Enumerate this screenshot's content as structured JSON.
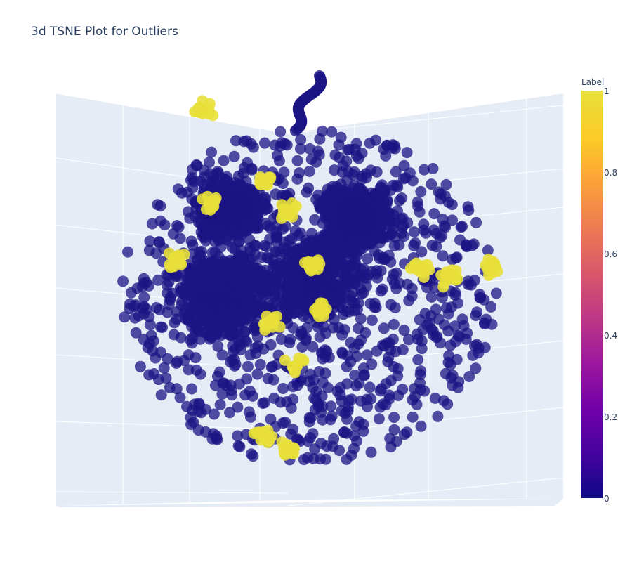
{
  "chart_data": {
    "type": "scatter",
    "title": "3d TSNE Plot for Outliers",
    "dimensions": 3,
    "color_field": "Label",
    "colorscale": "plasma",
    "colorscale_stops": [
      "#0d0887",
      "#46039f",
      "#7201a8",
      "#9c179e",
      "#bd3786",
      "#d8576b",
      "#ed7953",
      "#fb9f3a",
      "#fdca26",
      "#f0f921"
    ],
    "color_range": [
      0,
      1
    ],
    "point_color_inlier": "#1c1484",
    "point_color_outlier": "#e8e03a",
    "colorbar": {
      "title": "Label",
      "ticks": [
        "0",
        "0.2",
        "0.4",
        "0.6",
        "0.8",
        "1"
      ]
    },
    "series": [
      {
        "label_value": 0,
        "description_count_approx": "thousands",
        "clusters_view": [
          {
            "cx": 0.28,
            "cy": 0.52,
            "spread": 0.11
          },
          {
            "cx": 0.52,
            "cy": 0.47,
            "spread": 0.12
          },
          {
            "cx": 0.62,
            "cy": 0.3,
            "spread": 0.09
          },
          {
            "cx": 0.3,
            "cy": 0.28,
            "spread": 0.08
          }
        ]
      },
      {
        "label_value": 1,
        "description_count_approx": "hundreds"
      }
    ],
    "grid": true,
    "legend": "colorbar-right"
  }
}
